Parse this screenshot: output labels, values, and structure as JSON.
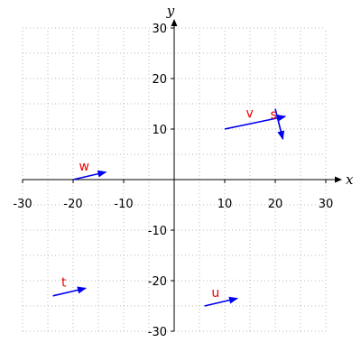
{
  "chart_data": {
    "type": "scatter",
    "kind": "vector-field",
    "xlabel": "x",
    "ylabel": "y",
    "xlim": [
      -30,
      30
    ],
    "ylim": [
      -30,
      30
    ],
    "xticks": [
      -30,
      -20,
      -10,
      10,
      20,
      30
    ],
    "yticks": [
      -30,
      -20,
      -10,
      10,
      20,
      30
    ],
    "grid": true,
    "grid_style": "dotted",
    "vector_color": "#0000ee",
    "label_color": "#ee0000",
    "vectors": [
      {
        "label": "v",
        "x0": 10,
        "y0": 10,
        "x1": 22,
        "y1": 12.5
      },
      {
        "label": "s",
        "x0": 20,
        "y0": 14,
        "x1": 21.5,
        "y1": 8
      },
      {
        "label": "w",
        "x0": -20,
        "y0": 0,
        "x1": -13.5,
        "y1": 1.5
      },
      {
        "label": "t",
        "x0": -24,
        "y0": -23,
        "x1": -17.5,
        "y1": -21.5
      },
      {
        "label": "u",
        "x0": 6,
        "y0": -25,
        "x1": 12.5,
        "y1": -23.5
      }
    ]
  }
}
